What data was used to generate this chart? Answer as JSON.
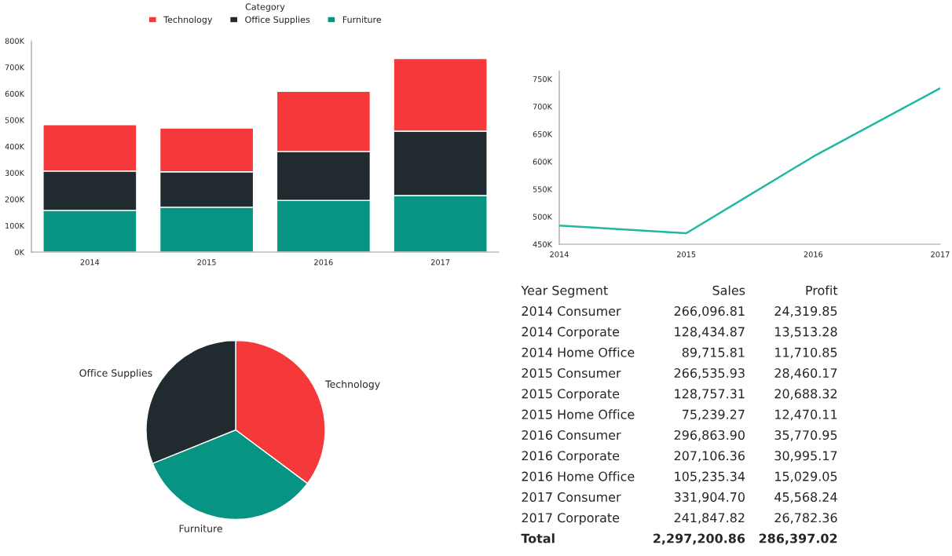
{
  "chart_data": [
    {
      "type": "bar",
      "stacked": true,
      "legend": "top",
      "legend_title": "Category",
      "grid": false,
      "categories": [
        "2014",
        "2015",
        "2016",
        "2017"
      ],
      "series": [
        {
          "name": "Furniture",
          "color": "#079483",
          "values": [
            158,
            170,
            196,
            214
          ]
        },
        {
          "name": "Office Supplies",
          "color": "#212a2e",
          "values": [
            149,
            134,
            185,
            244
          ]
        },
        {
          "name": "Technology",
          "color": "#f5393a",
          "values": [
            175,
            166,
            228,
            275
          ]
        }
      ],
      "ylim": [
        0,
        800
      ],
      "yticks": [
        {
          "value": 0,
          "label": "0K"
        },
        {
          "value": 100,
          "label": "100K"
        },
        {
          "value": 200,
          "label": "200K"
        },
        {
          "value": 300,
          "label": "300K"
        },
        {
          "value": 400,
          "label": "400K"
        },
        {
          "value": 500,
          "label": "500K"
        },
        {
          "value": 600,
          "label": "600K"
        },
        {
          "value": 700,
          "label": "700K"
        },
        {
          "value": 800,
          "label": "800K"
        }
      ]
    },
    {
      "type": "line",
      "grid": false,
      "marker": "none",
      "line_style": "solid",
      "x": [
        2014,
        2015,
        2016,
        2017
      ],
      "series": [
        {
          "color": "#1fb8a0",
          "values": [
            484,
            470,
            609,
            733
          ]
        }
      ],
      "xlim": [
        2014,
        2017
      ],
      "xticks": [
        2014,
        2015,
        2016,
        2017
      ],
      "ylim": [
        450,
        765
      ],
      "yticks": [
        {
          "value": 450,
          "label": "450K"
        },
        {
          "value": 500,
          "label": "500K"
        },
        {
          "value": 550,
          "label": "550K"
        },
        {
          "value": 600,
          "label": "600K"
        },
        {
          "value": 650,
          "label": "650K"
        },
        {
          "value": 700,
          "label": "700K"
        },
        {
          "value": 750,
          "label": "750K"
        }
      ]
    },
    {
      "type": "pie",
      "categories": [
        "Technology",
        "Furniture",
        "Office Supplies"
      ],
      "values": [
        35.2,
        33.7,
        31.1
      ],
      "colors": [
        "#f5393a",
        "#079483",
        "#212a2e"
      ]
    },
    {
      "type": "other",
      "annotations": [
        "Year\tSegment\tSales\tProfit",
        "2014\tConsumer\t266,096.81\t24,319.85",
        "2014\tCorporate\t128,434.87\t13,513.28",
        "2014\tHome Office\t89,715.81\t11,710.85",
        "2015\tConsumer\t266,535.93\t28,460.17",
        "2015\tCorporate\t128,757.31\t20,688.32",
        "2015\tHome Office\t75,239.27\t12,470.11",
        "2016\tConsumer\t296,863.90\t35,770.95",
        "2016\tCorporate\t207,106.36\t30,995.17",
        "2016\tHome Office\t105,235.34\t15,029.05",
        "2017\tConsumer\t331,904.70\t45,568.24",
        "2017\tCorporate\t241,847.82\t26,782.36",
        "Total\t\t2,297,200.86\t286,397.02"
      ]
    }
  ]
}
